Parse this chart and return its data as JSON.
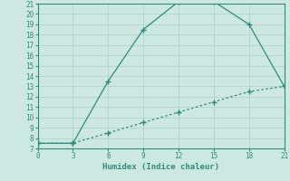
{
  "xlabel": "Humidex (Indice chaleur)",
  "line1_x": [
    0,
    3,
    6,
    9,
    12,
    15,
    18,
    21
  ],
  "line1_y": [
    7.5,
    7.5,
    13.5,
    18.5,
    21.2,
    21.2,
    19.0,
    13.0
  ],
  "line2_x": [
    0,
    3,
    6,
    9,
    12,
    15,
    18,
    21
  ],
  "line2_y": [
    7.5,
    7.5,
    8.5,
    9.5,
    10.5,
    11.5,
    12.5,
    13.0
  ],
  "line_color": "#2e8b7a",
  "bg_color": "#cce8e0",
  "grid_color": "#b0d4cc",
  "xlim": [
    0,
    21
  ],
  "ylim": [
    7,
    21
  ],
  "xticks": [
    0,
    3,
    6,
    9,
    12,
    15,
    18,
    21
  ],
  "yticks": [
    7,
    8,
    9,
    10,
    11,
    12,
    13,
    14,
    15,
    16,
    17,
    18,
    19,
    20,
    21
  ]
}
